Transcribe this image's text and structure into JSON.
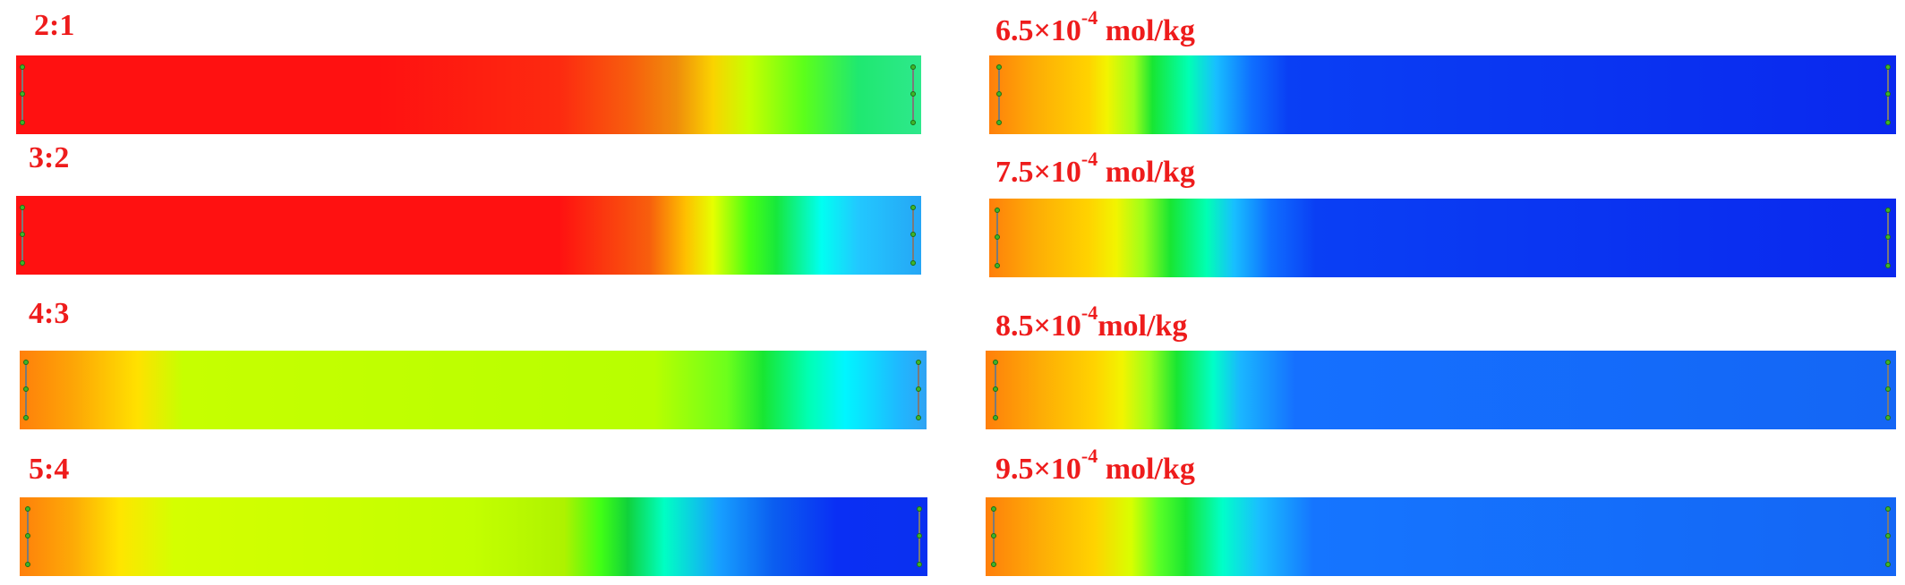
{
  "left_panels": [
    {
      "label": "2:1",
      "gradient": [
        "#ff1111 0%",
        "#ff1111 40%",
        "#fd2a10 60%",
        "#f75f0d 68%",
        "#f08d0b 73%",
        "#fad300 77%",
        "#c6ff00 81%",
        "#5cff1a 87%",
        "#1fe870 93%",
        "#2ee88c 100%"
      ]
    },
    {
      "label": "3:2",
      "gradient": [
        "#ff1111 0%",
        "#ff1111 60%",
        "#f75f0d 70%",
        "#fec000 74%",
        "#e6ff00 77%",
        "#46ff15 81%",
        "#17e83c 84%",
        "#00fff2 89%",
        "#22c8ff 93%",
        "#26a6f5 100%"
      ]
    },
    {
      "label": "4:3",
      "gradient": [
        "#ff7f0b 0%",
        "#fda606 6%",
        "#ffe100 13%",
        "#c6ff00 18%",
        "#b8ff00 70%",
        "#6cff1c 78%",
        "#18e632 82%",
        "#00ffb4 87%",
        "#00f6ff 91%",
        "#1fb8ff 97%",
        "#30a3f3 100%"
      ]
    },
    {
      "label": "5:4",
      "gradient": [
        "#ff7f0b 0%",
        "#fdab06 6%",
        "#ffe500 11%",
        "#d4ff00 17%",
        "#c3ff00 50%",
        "#aef200 60%",
        "#40ff15 64%",
        "#10d23b 67%",
        "#00ffc3 71%",
        "#17a0ff 77%",
        "#0b5ef0 83%",
        "#0a2ff4 90%",
        "#0a30f0 100%"
      ]
    }
  ],
  "right_panels": [
    {
      "label_base": "6.5×10",
      "label_exp": "-4",
      "label_unit": "mol/kg",
      "gradient": [
        "#ff7f0b 0%",
        "#fdac06 5%",
        "#ffd300 11%",
        "#f2f400 13%",
        "#9cff1a 16%",
        "#18e632 18%",
        "#00ffb4 22%",
        "#18bfff 25%",
        "#0f6eff 29%",
        "#0a3ff4 33%",
        "#0a28ee 100%"
      ]
    },
    {
      "label_base": "7.5×10",
      "label_exp": "-4",
      "label_unit": "mol/kg",
      "gradient": [
        "#ff7f0b 0%",
        "#fdac06 5%",
        "#ffd300 11%",
        "#f2f400 14%",
        "#9cff1a 17%",
        "#18e632 20%",
        "#00ffb4 24%",
        "#18bfff 27%",
        "#0f6eff 31%",
        "#0a3ff4 36%",
        "#0a28ee 100%"
      ]
    },
    {
      "label_base": "8.5×10",
      "label_exp": "-4",
      "label_unit": "mol/kg",
      "gradient": [
        "#ff7f0b 0%",
        "#fdac06 6%",
        "#ffd300 12%",
        "#f2f400 15%",
        "#9cff1a 18%",
        "#18e632 21%",
        "#00ffc8 25%",
        "#1ab6ff 28%",
        "#1570ff 34%",
        "#1466f5 100%"
      ]
    },
    {
      "label_base": "9.5×10",
      "label_exp": "-4",
      "label_unit": "mol/kg",
      "gradient": [
        "#ff7f0b 0%",
        "#fdac06 6%",
        "#ffd300 12%",
        "#d8ff00 16%",
        "#5aff26 19%",
        "#18e632 22%",
        "#00ffc8 26%",
        "#1abfff 30%",
        "#1575ff 36%",
        "#1466f5 100%"
      ]
    }
  ],
  "electrode_color": "#3fb52a"
}
